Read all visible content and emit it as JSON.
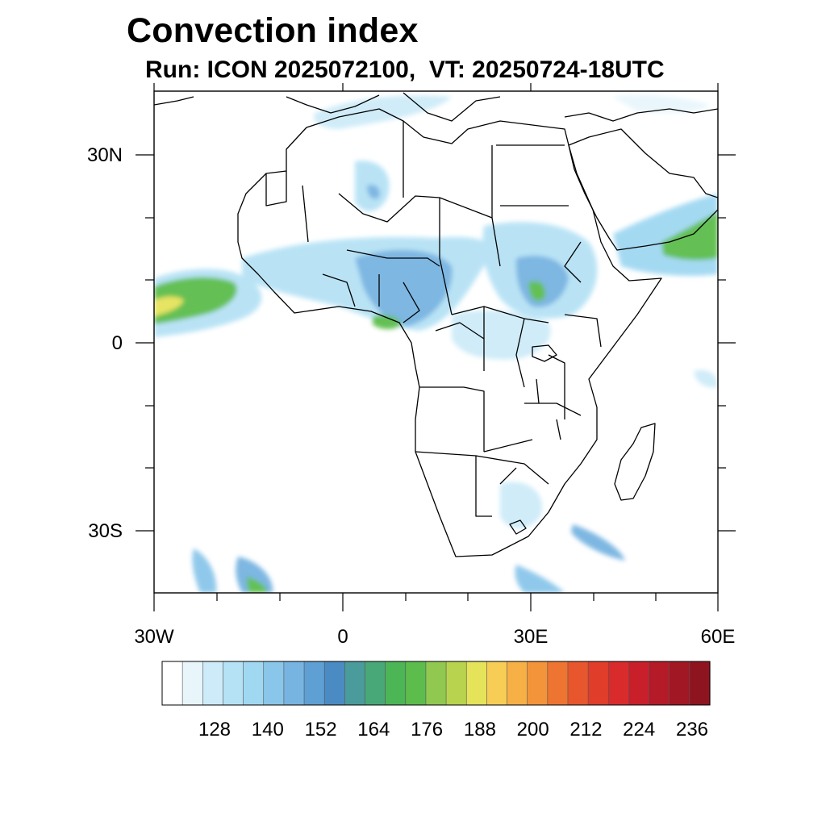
{
  "header": {
    "title": "Convection index",
    "subtitle": "Run: ICON 2025072100,  VT: 20250724-18UTC"
  },
  "map": {
    "lon_range": [
      -30,
      60
    ],
    "lat_range": [
      -40,
      40
    ],
    "lon_labels": [
      "30W",
      "0",
      "30E",
      "60E"
    ],
    "lat_labels": [
      "30N",
      "0",
      "30S"
    ]
  },
  "colorbar": {
    "labels": [
      "128",
      "140",
      "152",
      "164",
      "176",
      "188",
      "200",
      "212",
      "224",
      "236"
    ],
    "colors": [
      "#ffffff",
      "#e8f6fc",
      "#cdebf8",
      "#b6e2f5",
      "#a0d8f2",
      "#8ac6ea",
      "#77b4e1",
      "#5e9fd4",
      "#4b8bc4",
      "#4a9b9b",
      "#49a878",
      "#4cb556",
      "#5cbd4c",
      "#90c850",
      "#b8d44e",
      "#e5e35a",
      "#f7cd55",
      "#f6b046",
      "#f4943a",
      "#ee7431",
      "#e7562c",
      "#e03d2b",
      "#d92b2b",
      "#c81f2b",
      "#b51a28",
      "#a21724",
      "#8e1420"
    ]
  }
}
